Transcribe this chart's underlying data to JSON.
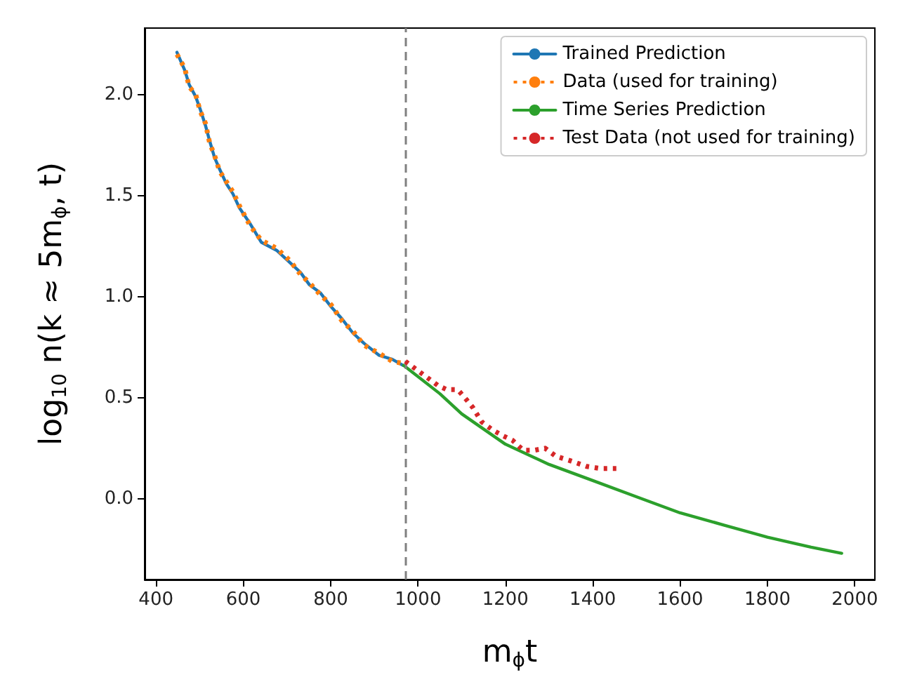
{
  "chart_data": {
    "type": "line",
    "xlabel": "m$_{ϕ}$t",
    "ylabel": "log$_{10}$ n(k ≈ 5m$_{ϕ}$, t)",
    "xlim": [
      374,
      2046
    ],
    "xticks": [
      400,
      600,
      800,
      1000,
      1200,
      1400,
      1600,
      1800,
      2000
    ],
    "ylim": [
      -0.4,
      2.33
    ],
    "yticks": [
      {
        "value": 0,
        "label": "0.0"
      },
      {
        "value": 0.5,
        "label": "0.5"
      },
      {
        "value": 1,
        "label": "1.0"
      },
      {
        "value": 1.5,
        "label": "1.5"
      },
      {
        "value": 2,
        "label": "2.0"
      }
    ],
    "grid": false,
    "legend": "top right",
    "marker": "none",
    "ref_lines": [
      {
        "axis": "x",
        "value": 970,
        "color": "#808080",
        "line_style": "dashed"
      }
    ],
    "series": [
      {
        "name": "Trained Prediction",
        "color": "#1f77b4",
        "line_style": "solid",
        "x": [
          448,
          466,
          476,
          491,
          501,
          513,
          523,
          534,
          546,
          561,
          576,
          591,
          616,
          641,
          676,
          706,
          731,
          751,
          776,
          801,
          826,
          851,
          876,
          911,
          941,
          966
        ],
        "values": [
          2.21,
          2.12,
          2.05,
          1.99,
          1.93,
          1.85,
          1.77,
          1.69,
          1.63,
          1.56,
          1.51,
          1.44,
          1.36,
          1.27,
          1.23,
          1.17,
          1.12,
          1.06,
          1.02,
          0.95,
          0.89,
          0.82,
          0.77,
          0.71,
          0.69,
          0.66
        ]
      },
      {
        "name": "Data (used for training)",
        "color": "#ff7f0e",
        "line_style": "dotted",
        "x": [
          448,
          466,
          476,
          491,
          501,
          513,
          523,
          534,
          546,
          561,
          576,
          591,
          616,
          641,
          676,
          706,
          731,
          751,
          776,
          801,
          826,
          851,
          876,
          911,
          941,
          966
        ],
        "values": [
          2.2,
          2.13,
          2.04,
          2.0,
          1.92,
          1.86,
          1.76,
          1.7,
          1.62,
          1.57,
          1.52,
          1.45,
          1.35,
          1.28,
          1.24,
          1.18,
          1.11,
          1.07,
          1.01,
          0.96,
          0.88,
          0.83,
          0.76,
          0.72,
          0.68,
          0.67
        ]
      },
      {
        "name": "Time Series Prediction",
        "color": "#2ca02c",
        "line_style": "solid",
        "x": [
          967,
          1050,
          1100,
          1200,
          1300,
          1400,
          1500,
          1600,
          1700,
          1800,
          1900,
          1970
        ],
        "values": [
          0.66,
          0.52,
          0.42,
          0.27,
          0.17,
          0.09,
          0.01,
          -0.07,
          -0.13,
          -0.19,
          -0.24,
          -0.27
        ]
      },
      {
        "name": "Test Data (not used for training)",
        "color": "#d62728",
        "line_style": "dotted",
        "x": [
          971,
          996,
          1021,
          1046,
          1066,
          1091,
          1111,
          1126,
          1146,
          1171,
          1196,
          1216,
          1241,
          1266,
          1291,
          1316,
          1346,
          1386,
          1416,
          1456
        ],
        "values": [
          0.68,
          0.64,
          0.6,
          0.56,
          0.54,
          0.54,
          0.49,
          0.45,
          0.38,
          0.34,
          0.31,
          0.29,
          0.24,
          0.24,
          0.25,
          0.21,
          0.19,
          0.16,
          0.15,
          0.15
        ]
      }
    ]
  }
}
